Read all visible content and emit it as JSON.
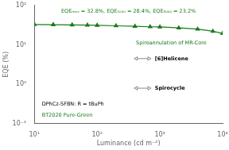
{
  "chart_data": {
    "type": "line",
    "log": true,
    "grid": false,
    "xlabel": "Luminance (cd m⁻²)",
    "ylabel": "EQE (%)",
    "x": [
      10,
      20,
      40,
      70,
      100,
      200,
      400,
      700,
      1000,
      2000,
      4000,
      7000,
      10000
    ],
    "values": [
      32.8,
      32.5,
      32.1,
      31.6,
      31.2,
      30.4,
      29.5,
      28.7,
      28.4,
      26.8,
      25.0,
      22.0,
      19.5
    ],
    "color": "#1a7a1a",
    "marker": "triangle",
    "xlim": [
      10,
      10000
    ],
    "ylim": [
      0.1,
      100
    ],
    "xticks": [
      {
        "value": 10,
        "label": "10¹"
      },
      {
        "value": 100,
        "label": "10²"
      },
      {
        "value": 1000,
        "label": "10³"
      },
      {
        "value": 10000,
        "label": "10⁴"
      }
    ],
    "yticks": [
      {
        "value": 0.1,
        "label": "10⁻¹"
      },
      {
        "value": 1,
        "label": "10⁰"
      },
      {
        "value": 10,
        "label": "10¹"
      },
      {
        "value": 100,
        "label": "10²"
      }
    ],
    "annotations": [
      {
        "text": "EQEₘₐₓ = 32.8%, EQE₁₀₀₀ = 28.4%, EQE₅₀₀₀ = 23.2%",
        "color": "#1a7a1a"
      },
      {
        "text": "DPhCz-SFBN: R = tBuPh",
        "color": "#000000"
      },
      {
        "text": "BT2020 Pure-Green",
        "color": "#1a7a1a"
      },
      {
        "text": "Spiroannulation of MR-Core",
        "color": "#1a7a1a"
      },
      {
        "text": "[6]Helicene",
        "color": "#000000"
      },
      {
        "text": "Spirocycle",
        "color": "#000000"
      }
    ]
  }
}
